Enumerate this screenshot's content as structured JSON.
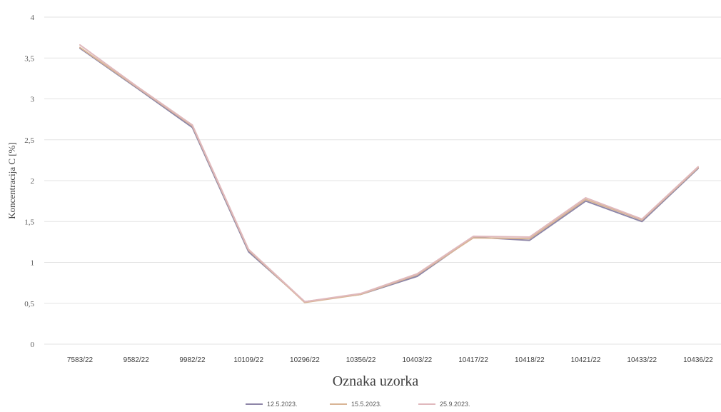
{
  "chart_data": {
    "type": "line",
    "xlabel": "Oznaka uzorka",
    "ylabel": "Koncentracija C [%]",
    "ylim": [
      0,
      4
    ],
    "yticks": [
      0,
      0.5,
      1,
      1.5,
      2,
      2.5,
      3,
      3.5,
      4
    ],
    "ytick_labels": [
      "0",
      "0,5",
      "1",
      "1,5",
      "2",
      "2,5",
      "3",
      "3,5",
      "4"
    ],
    "grid": true,
    "legend_position": "bottom",
    "categories": [
      "7583/22",
      "9582/22",
      "9982/22",
      "10109/22",
      "10296/22",
      "10356/22",
      "10403/22",
      "10417/22",
      "10418/22",
      "10421/22",
      "10433/22",
      "10436/22"
    ],
    "series": [
      {
        "name": "12.5.2023.",
        "color": "#8e86a8",
        "values": [
          3.62,
          3.14,
          2.65,
          1.13,
          0.52,
          0.61,
          0.83,
          1.31,
          1.27,
          1.75,
          1.5,
          2.15
        ]
      },
      {
        "name": "15.5.2023.",
        "color": "#d9b596",
        "values": [
          3.63,
          3.15,
          2.67,
          1.15,
          0.51,
          0.61,
          0.85,
          1.3,
          1.29,
          1.77,
          1.52,
          2.16
        ]
      },
      {
        "name": "25.9.2023.",
        "color": "#e0b9bd",
        "values": [
          3.66,
          3.16,
          2.68,
          1.16,
          0.52,
          0.62,
          0.86,
          1.32,
          1.31,
          1.79,
          1.53,
          2.17
        ]
      }
    ]
  }
}
